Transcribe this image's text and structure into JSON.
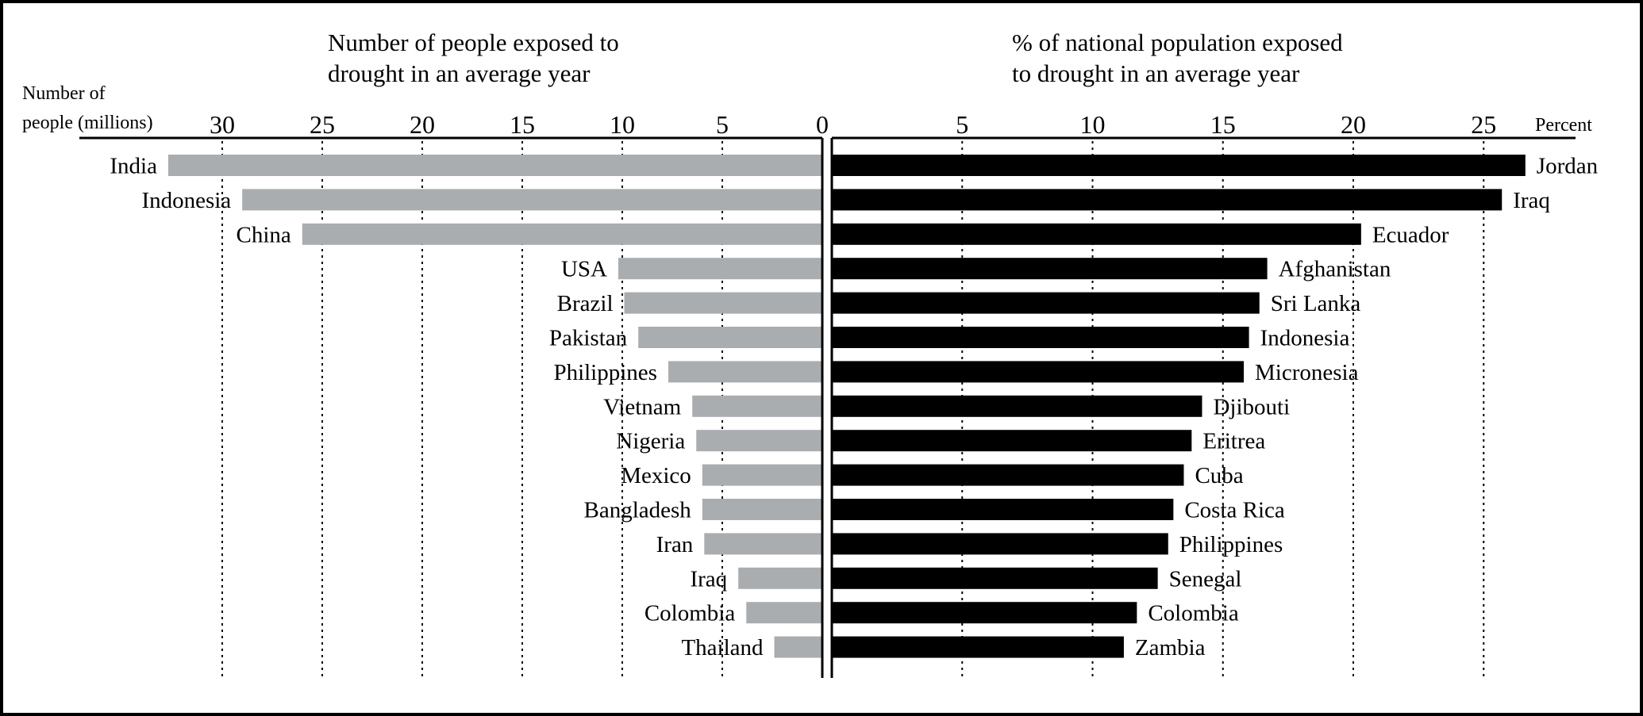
{
  "chart_data": [
    {
      "type": "bar",
      "orientation": "horizontal",
      "title": [
        "Number of people exposed to",
        "drought in an average year"
      ],
      "xlabel": [
        "Number of",
        "people (millions)"
      ],
      "direction": "right-to-left",
      "xlim": [
        0,
        33
      ],
      "ticks": [
        0,
        5,
        10,
        15,
        20,
        25,
        30
      ],
      "grid": true,
      "bar_color": "#aaadb0",
      "categories": [
        "India",
        "Indonesia",
        "China",
        "USA",
        "Brazil",
        "Pakistan",
        "Philippines",
        "Vietnam",
        "Nigeria",
        "Mexico",
        "Bangladesh",
        "Iran",
        "Iraq",
        "Colombia",
        "Thailand"
      ],
      "values": [
        32.7,
        29.0,
        26.0,
        10.2,
        9.9,
        9.2,
        7.7,
        6.5,
        6.3,
        6.0,
        6.0,
        5.9,
        4.2,
        3.8,
        2.4
      ]
    },
    {
      "type": "bar",
      "orientation": "horizontal",
      "title": [
        "% of national population exposed",
        "to drought in an average year"
      ],
      "xlabel": "Percent",
      "direction": "left-to-right",
      "xlim": [
        0,
        28.5
      ],
      "ticks": [
        0,
        5,
        10,
        15,
        20,
        25
      ],
      "grid": true,
      "bar_color": "#000000",
      "categories": [
        "Jordan",
        "Iraq",
        "Ecuador",
        "Afghanistan",
        "Sri Lanka",
        "Indonesia",
        "Micronesia",
        "Djibouti",
        "Eritrea",
        "Cuba",
        "Costa Rica",
        "Philippines",
        "Senegal",
        "Colombia",
        "Zambia"
      ],
      "values": [
        26.6,
        25.7,
        20.3,
        16.7,
        16.4,
        16.0,
        15.8,
        14.2,
        13.8,
        13.5,
        13.1,
        12.9,
        12.5,
        11.7,
        11.2
      ]
    }
  ]
}
